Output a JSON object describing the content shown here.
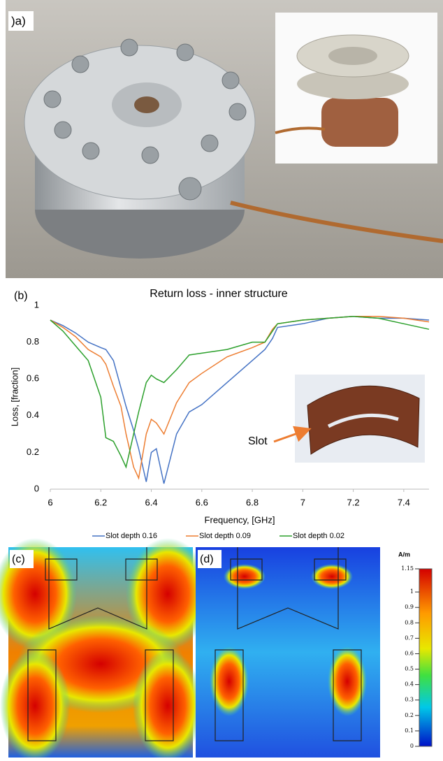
{
  "panel_labels": {
    "a": ")a)",
    "b": "(b)",
    "c": "(c)",
    "d": "(d)"
  },
  "chart_data": {
    "type": "line",
    "title": "Return loss - inner structure",
    "x_label": "Frequency, [GHz]",
    "y_label": "Loss, [fraction]",
    "x": [
      6,
      6.05,
      6.1,
      6.15,
      6.2,
      6.22,
      6.25,
      6.28,
      6.3,
      6.33,
      6.35,
      6.38,
      6.4,
      6.42,
      6.45,
      6.5,
      6.55,
      6.6,
      6.7,
      6.8,
      6.85,
      6.88,
      6.9,
      7,
      7.1,
      7.2,
      7.3,
      7.4,
      7.5
    ],
    "series": [
      {
        "name": "Slot depth 0.16",
        "color": "#4472c4",
        "values": [
          0.92,
          0.89,
          0.85,
          0.8,
          0.77,
          0.76,
          0.7,
          0.55,
          0.45,
          0.32,
          0.22,
          0.04,
          0.2,
          0.22,
          0.03,
          0.3,
          0.42,
          0.46,
          0.58,
          0.7,
          0.76,
          0.82,
          0.88,
          0.9,
          0.93,
          0.94,
          0.93,
          0.93,
          0.92
        ]
      },
      {
        "name": "Slot depth 0.09",
        "color": "#ed7d31",
        "values": [
          0.92,
          0.88,
          0.83,
          0.76,
          0.72,
          0.68,
          0.56,
          0.45,
          0.3,
          0.12,
          0.06,
          0.3,
          0.38,
          0.36,
          0.3,
          0.47,
          0.58,
          0.63,
          0.72,
          0.77,
          0.8,
          0.87,
          0.9,
          0.92,
          0.93,
          0.94,
          0.94,
          0.93,
          0.91
        ]
      },
      {
        "name": "Slot depth 0.02",
        "color": "#2ca02c",
        "values": [
          0.92,
          0.86,
          0.78,
          0.7,
          0.5,
          0.28,
          0.26,
          0.18,
          0.12,
          0.3,
          0.42,
          0.58,
          0.62,
          0.6,
          0.58,
          0.65,
          0.73,
          0.74,
          0.76,
          0.8,
          0.8,
          0.86,
          0.9,
          0.92,
          0.93,
          0.94,
          0.93,
          0.9,
          0.87
        ]
      }
    ],
    "xlim": [
      6,
      7.5
    ],
    "xticks": [
      6,
      6.2,
      6.4,
      6.6,
      6.8,
      7,
      7.2,
      7.4
    ],
    "ylim": [
      0,
      1
    ],
    "yticks": [
      0,
      0.2,
      0.4,
      0.6,
      0.8,
      1
    ],
    "inset_label": "Slot"
  },
  "colorbar": {
    "unit": "A/m",
    "lim": [
      0,
      1.15
    ],
    "ticks": [
      0,
      0.1,
      0.2,
      0.3,
      0.4,
      0.5,
      0.6,
      0.7,
      0.8,
      0.9,
      1,
      1.15
    ]
  }
}
